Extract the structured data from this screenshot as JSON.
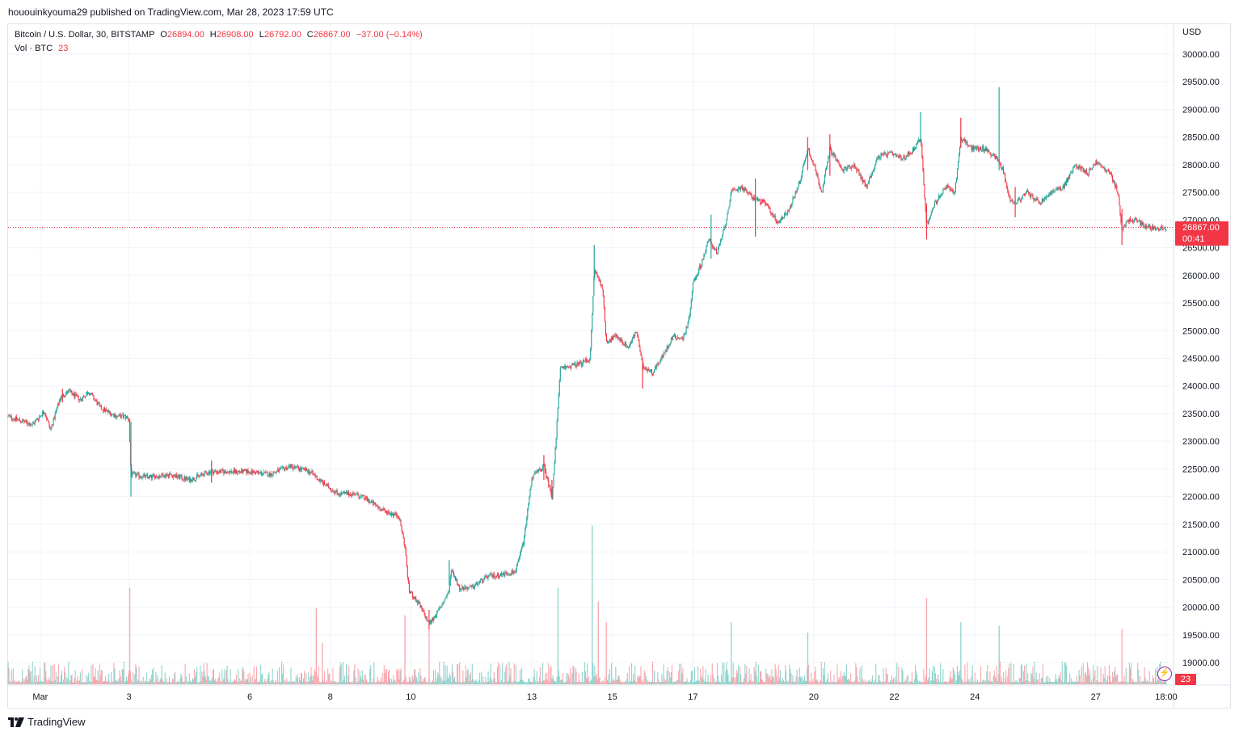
{
  "publisher": "hououinkyouma29 published on TradingView.com, Mar 28, 2023 17:59 UTC",
  "brand": "TradingView",
  "legend": {
    "symbol": "Bitcoin / U.S. Dollar, 30, BITSTAMP",
    "o_label": "O",
    "o_value": "26894.00",
    "h_label": "H",
    "h_value": "26908.00",
    "l_label": "L",
    "l_value": "26792.00",
    "c_label": "C",
    "c_value": "26867.00",
    "change": "−37.00 (−0.14%)",
    "vol_label": "Vol · BTC",
    "vol_value": "23"
  },
  "axis": {
    "currency": "USD",
    "current_price": "26867.00",
    "countdown": "00:41",
    "volume_badge": "23"
  },
  "colors": {
    "up": "#26a69a",
    "down": "#f23645",
    "up_volume": "#8fd3cc",
    "down_volume": "#f7a8ae",
    "grid": "#f0f3fa"
  },
  "chart_data": {
    "type": "candlestick",
    "symbol": "Bitcoin / U.S. Dollar",
    "timeframe": "30",
    "exchange": "BITSTAMP",
    "ylim": [
      18600,
      30500
    ],
    "yticks": [
      19000,
      19500,
      20000,
      20500,
      21000,
      21500,
      22000,
      22500,
      23000,
      23500,
      24000,
      24500,
      25000,
      25500,
      26000,
      26500,
      27000,
      27500,
      28000,
      28500,
      29000,
      29500,
      30000
    ],
    "yticks_labels": [
      "19000.00",
      "19500.00",
      "20000.00",
      "20500.00",
      "21000.00",
      "21500.00",
      "22000.00",
      "22500.00",
      "23000.00",
      "23500.00",
      "24000.00",
      "24500.00",
      "25000.00",
      "25500.00",
      "26000.00",
      "26500.00",
      "27000.00",
      "27500.00",
      "28000.00",
      "28500.00",
      "29000.00",
      "29500.00",
      "30000.00"
    ],
    "xlim_days": [
      0,
      28.75
    ],
    "xticks": [
      {
        "label": "Mar",
        "day": 0.8
      },
      {
        "label": "3",
        "day": 3
      },
      {
        "label": "6",
        "day": 6
      },
      {
        "label": "8",
        "day": 8
      },
      {
        "label": "10",
        "day": 10
      },
      {
        "label": "13",
        "day": 13
      },
      {
        "label": "15",
        "day": 15
      },
      {
        "label": "17",
        "day": 17
      },
      {
        "label": "20",
        "day": 20
      },
      {
        "label": "22",
        "day": 22
      },
      {
        "label": "24",
        "day": 24
      },
      {
        "label": "27",
        "day": 27
      },
      {
        "label": "18:00",
        "day": 28.75
      }
    ],
    "price_path": [
      [
        0.0,
        23450
      ],
      [
        0.6,
        23300
      ],
      [
        0.9,
        23550
      ],
      [
        1.05,
        23200
      ],
      [
        1.3,
        23800
      ],
      [
        1.5,
        23900
      ],
      [
        1.8,
        23750
      ],
      [
        2.0,
        23900
      ],
      [
        2.3,
        23600
      ],
      [
        2.7,
        23450
      ],
      [
        2.9,
        23450
      ],
      [
        3.0,
        23400
      ],
      [
        3.05,
        22400
      ],
      [
        3.5,
        22350
      ],
      [
        4.0,
        22400
      ],
      [
        4.5,
        22300
      ],
      [
        5.0,
        22450
      ],
      [
        5.5,
        22450
      ],
      [
        6.0,
        22450
      ],
      [
        6.5,
        22400
      ],
      [
        7.0,
        22550
      ],
      [
        7.5,
        22450
      ],
      [
        7.8,
        22250
      ],
      [
        8.2,
        22050
      ],
      [
        8.6,
        22050
      ],
      [
        8.9,
        21950
      ],
      [
        9.3,
        21750
      ],
      [
        9.7,
        21650
      ],
      [
        9.85,
        21100
      ],
      [
        9.95,
        20300
      ],
      [
        10.2,
        20050
      ],
      [
        10.45,
        19700
      ],
      [
        10.7,
        19950
      ],
      [
        10.95,
        20300
      ],
      [
        11.0,
        20700
      ],
      [
        11.2,
        20350
      ],
      [
        11.5,
        20350
      ],
      [
        11.9,
        20550
      ],
      [
        12.3,
        20600
      ],
      [
        12.6,
        20650
      ],
      [
        12.8,
        21200
      ],
      [
        13.0,
        22350
      ],
      [
        13.3,
        22550
      ],
      [
        13.5,
        22000
      ],
      [
        13.6,
        23000
      ],
      [
        13.7,
        24300
      ],
      [
        13.9,
        24350
      ],
      [
        14.2,
        24400
      ],
      [
        14.45,
        24500
      ],
      [
        14.55,
        26100
      ],
      [
        14.75,
        25800
      ],
      [
        14.85,
        24800
      ],
      [
        15.1,
        24900
      ],
      [
        15.4,
        24700
      ],
      [
        15.6,
        25000
      ],
      [
        15.75,
        24350
      ],
      [
        16.0,
        24250
      ],
      [
        16.3,
        24600
      ],
      [
        16.5,
        24900
      ],
      [
        16.75,
        24850
      ],
      [
        16.9,
        25200
      ],
      [
        17.0,
        25850
      ],
      [
        17.2,
        26200
      ],
      [
        17.4,
        26650
      ],
      [
        17.6,
        26400
      ],
      [
        17.8,
        26900
      ],
      [
        17.95,
        27500
      ],
      [
        18.2,
        27600
      ],
      [
        18.5,
        27400
      ],
      [
        18.8,
        27300
      ],
      [
        19.1,
        26950
      ],
      [
        19.4,
        27200
      ],
      [
        19.65,
        27700
      ],
      [
        19.85,
        28300
      ],
      [
        20.0,
        28000
      ],
      [
        20.2,
        27500
      ],
      [
        20.4,
        28300
      ],
      [
        20.7,
        27900
      ],
      [
        21.0,
        28000
      ],
      [
        21.3,
        27600
      ],
      [
        21.6,
        28150
      ],
      [
        21.9,
        28200
      ],
      [
        22.2,
        28100
      ],
      [
        22.5,
        28300
      ],
      [
        22.65,
        28500
      ],
      [
        22.8,
        26900
      ],
      [
        23.0,
        27300
      ],
      [
        23.3,
        27600
      ],
      [
        23.5,
        27500
      ],
      [
        23.65,
        28500
      ],
      [
        23.9,
        28300
      ],
      [
        24.2,
        28300
      ],
      [
        24.5,
        28150
      ],
      [
        24.7,
        27900
      ],
      [
        24.85,
        27400
      ],
      [
        25.0,
        27300
      ],
      [
        25.3,
        27500
      ],
      [
        25.6,
        27300
      ],
      [
        25.9,
        27500
      ],
      [
        26.2,
        27600
      ],
      [
        26.5,
        28000
      ],
      [
        26.8,
        27850
      ],
      [
        27.0,
        28050
      ],
      [
        27.35,
        27850
      ],
      [
        27.55,
        27500
      ],
      [
        27.65,
        26800
      ],
      [
        27.8,
        27000
      ],
      [
        28.0,
        27000
      ],
      [
        28.2,
        26900
      ],
      [
        28.5,
        26850
      ],
      [
        28.75,
        26867
      ]
    ],
    "wicks": [
      {
        "day": 1.35,
        "high": 23950,
        "low": 23700
      },
      {
        "day": 3.05,
        "high": 23350,
        "low": 22000
      },
      {
        "day": 5.05,
        "high": 22650,
        "low": 22250
      },
      {
        "day": 10.45,
        "high": 19950,
        "low": 19600
      },
      {
        "day": 10.95,
        "high": 20850,
        "low": 20400
      },
      {
        "day": 13.3,
        "high": 22750,
        "low": 22300
      },
      {
        "day": 13.5,
        "high": 22300,
        "low": 21950
      },
      {
        "day": 14.55,
        "high": 26550,
        "low": 25900
      },
      {
        "day": 15.75,
        "high": 24450,
        "low": 23950
      },
      {
        "day": 17.45,
        "high": 27100,
        "low": 26300
      },
      {
        "day": 18.55,
        "high": 27750,
        "low": 26700
      },
      {
        "day": 19.85,
        "high": 28500,
        "low": 27900
      },
      {
        "day": 20.4,
        "high": 28550,
        "low": 27800
      },
      {
        "day": 22.65,
        "high": 28950,
        "low": 28400
      },
      {
        "day": 22.8,
        "high": 27300,
        "low": 26650
      },
      {
        "day": 23.65,
        "high": 28850,
        "low": 28300
      },
      {
        "day": 24.6,
        "high": 29400,
        "low": 27900
      },
      {
        "day": 25.0,
        "high": 27600,
        "low": 27050
      },
      {
        "day": 27.65,
        "high": 27200,
        "low": 26550
      }
    ],
    "volume_spikes": [
      {
        "day": 3.02,
        "value": 140,
        "dir": "down"
      },
      {
        "day": 7.65,
        "value": 110,
        "dir": "down"
      },
      {
        "day": 7.8,
        "value": 60,
        "dir": "down"
      },
      {
        "day": 9.85,
        "value": 100,
        "dir": "down"
      },
      {
        "day": 10.45,
        "value": 80,
        "dir": "down"
      },
      {
        "day": 13.65,
        "value": 140,
        "dir": "up"
      },
      {
        "day": 14.5,
        "value": 230,
        "dir": "up"
      },
      {
        "day": 14.65,
        "value": 120,
        "dir": "down"
      },
      {
        "day": 14.85,
        "value": 90,
        "dir": "down"
      },
      {
        "day": 17.95,
        "value": 90,
        "dir": "up"
      },
      {
        "day": 19.85,
        "value": 75,
        "dir": "up"
      },
      {
        "day": 22.8,
        "value": 125,
        "dir": "down"
      },
      {
        "day": 23.65,
        "value": 90,
        "dir": "up"
      },
      {
        "day": 24.6,
        "value": 85,
        "dir": "up"
      },
      {
        "day": 27.65,
        "value": 80,
        "dir": "down"
      }
    ],
    "volume_max": 240,
    "last_price": 26867,
    "last_volume": 23
  }
}
